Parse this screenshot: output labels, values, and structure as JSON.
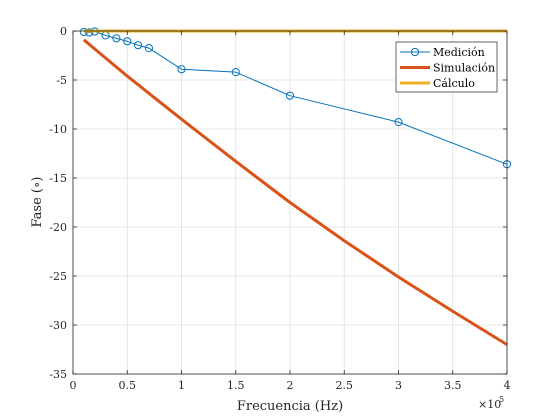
{
  "chart_data": {
    "type": "line",
    "xlabel": "Frecuencia (Hz)",
    "ylabel": "Fase (∘)",
    "xlim": [
      0,
      400000
    ],
    "ylim": [
      -35,
      0
    ],
    "x_ticks": [
      0,
      50000,
      100000,
      150000,
      200000,
      250000,
      300000,
      350000,
      400000
    ],
    "x_tick_labels": [
      "0",
      "0.5",
      "1",
      "1.5",
      "2",
      "2.5",
      "3",
      "3.5",
      "4"
    ],
    "x_exponent_label": "×10",
    "x_exponent_power": "5",
    "y_ticks": [
      0,
      -5,
      -10,
      -15,
      -20,
      -25,
      -30,
      -35
    ],
    "y_tick_labels": [
      "0",
      "-5",
      "-10",
      "-15",
      "-20",
      "-25",
      "-30",
      "-35"
    ],
    "grid": true,
    "legend_position": "top-right",
    "series": [
      {
        "name": "Medición",
        "color": "#0072BD",
        "marker": "circle",
        "line_width": 1,
        "x": [
          10000,
          15000,
          20000,
          30000,
          40000,
          50000,
          60000,
          70000,
          100000,
          150000,
          200000,
          300000,
          400000
        ],
        "y": [
          -0.1,
          -0.15,
          -0.05,
          -0.45,
          -0.75,
          -1.05,
          -1.45,
          -1.75,
          -3.9,
          -4.2,
          -6.6,
          -9.3,
          -13.6
        ]
      },
      {
        "name": "Simulación",
        "color": "#D95319",
        "marker": "none",
        "line_width": 3,
        "x": [
          10000,
          25000,
          50000,
          75000,
          100000,
          150000,
          200000,
          250000,
          300000,
          350000,
          400000
        ],
        "y": [
          -0.9,
          -2.3,
          -4.6,
          -6.8,
          -9.0,
          -13.3,
          -17.5,
          -21.4,
          -25.1,
          -28.6,
          -32.0
        ]
      },
      {
        "name": "Cálculo",
        "color": "#EDB120",
        "marker": "none",
        "line_width": 3,
        "x": [
          10000,
          400000
        ],
        "y": [
          0,
          0
        ]
      }
    ]
  }
}
